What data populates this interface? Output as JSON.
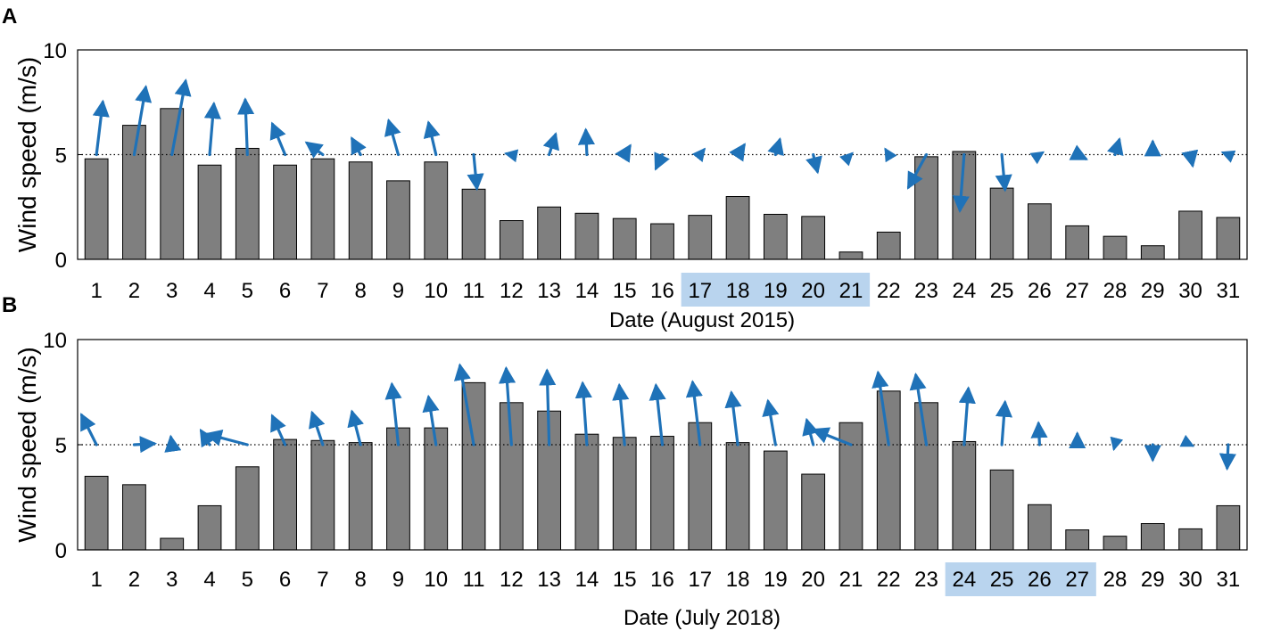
{
  "colors": {
    "bar": "#7f7f7f",
    "arrow": "#1f72b8",
    "highlight": "#b9d4ee"
  },
  "chart_data": [
    {
      "type": "bar",
      "panel": "A",
      "xlabel": "Date (August 2015)",
      "ylabel": "Wind speed (m/s)",
      "ylim": [
        0,
        10
      ],
      "yticks": [
        0,
        5,
        10
      ],
      "categories": [
        "1",
        "2",
        "3",
        "4",
        "5",
        "6",
        "7",
        "8",
        "9",
        "10",
        "11",
        "12",
        "13",
        "14",
        "15",
        "16",
        "17",
        "18",
        "19",
        "20",
        "21",
        "22",
        "23",
        "24",
        "25",
        "26",
        "27",
        "28",
        "29",
        "30",
        "31"
      ],
      "values": [
        4.8,
        6.4,
        7.2,
        4.5,
        5.3,
        4.5,
        4.8,
        4.65,
        3.75,
        4.65,
        3.35,
        1.85,
        2.5,
        2.2,
        1.95,
        1.7,
        2.1,
        3.0,
        2.15,
        2.05,
        0.35,
        1.3,
        4.9,
        5.15,
        3.4,
        2.65,
        1.6,
        1.1,
        0.65,
        2.3,
        2.0
      ],
      "reference_line": 5,
      "wind_vectors_u": [
        0.3,
        0.55,
        0.65,
        0.2,
        -0.1,
        -0.6,
        -0.75,
        -0.4,
        -0.45,
        -0.35,
        0.15,
        -0.25,
        0.3,
        -0.05,
        0.25,
        -0.3,
        0.2,
        0.3,
        0.2,
        0.2,
        0.05,
        -0.15,
        -0.85,
        -0.2,
        0.15,
        0.15,
        0.4,
        0.2,
        0.0,
        0.1,
        -0.25
      ],
      "wind_vectors_v": [
        2.5,
        3.2,
        3.5,
        2.4,
        2.6,
        1.45,
        0.55,
        0.75,
        1.6,
        1.5,
        -1.6,
        0.05,
        0.95,
        1.15,
        0.4,
        -0.65,
        0.25,
        0.45,
        0.7,
        -0.8,
        0.05,
        0.25,
        -1.55,
        -2.65,
        -1.65,
        0.1,
        -0.2,
        0.7,
        0.6,
        -0.5,
        0.1
      ],
      "highlighted_categories": [
        "17",
        "18",
        "19",
        "20",
        "21"
      ]
    },
    {
      "type": "bar",
      "panel": "B",
      "xlabel": "Date (July 2018)",
      "ylabel": "Wind speed (m/s)",
      "ylim": [
        0,
        10
      ],
      "yticks": [
        0,
        5,
        10
      ],
      "categories": [
        "1",
        "2",
        "3",
        "4",
        "5",
        "6",
        "7",
        "8",
        "9",
        "10",
        "11",
        "12",
        "13",
        "14",
        "15",
        "16",
        "17",
        "18",
        "19",
        "20",
        "21",
        "22",
        "23",
        "24",
        "25",
        "26",
        "27",
        "28",
        "29",
        "30",
        "31"
      ],
      "values": [
        3.5,
        3.1,
        0.55,
        2.1,
        3.95,
        5.25,
        5.2,
        5.1,
        5.8,
        5.8,
        7.95,
        7.0,
        6.6,
        5.5,
        5.35,
        5.4,
        6.05,
        5.1,
        4.7,
        3.6,
        6.05,
        7.55,
        7.0,
        5.15,
        3.8,
        2.15,
        0.95,
        0.65,
        1.25,
        1.0,
        2.1
      ],
      "reference_line": 5,
      "wind_vectors_u": [
        -0.7,
        0.95,
        -0.05,
        -0.4,
        -1.9,
        -0.6,
        -0.5,
        -0.4,
        -0.3,
        -0.35,
        -0.65,
        -0.25,
        -0.1,
        -0.2,
        -0.25,
        -0.3,
        -0.35,
        -0.3,
        -0.35,
        -0.3,
        -1.75,
        -0.5,
        -0.5,
        0.2,
        0.15,
        -0.05,
        0.0,
        -0.05,
        0.0,
        0.1,
        -0.05
      ],
      "wind_vectors_v": [
        1.4,
        0.05,
        0.35,
        0.65,
        0.5,
        1.35,
        1.5,
        1.55,
        2.85,
        2.25,
        3.75,
        3.6,
        3.5,
        2.9,
        2.8,
        2.8,
        2.95,
        2.45,
        2.05,
        1.15,
        0.7,
        3.4,
        3.3,
        2.65,
        2.0,
        1.0,
        0.5,
        -0.2,
        -0.7,
        -0.05,
        -1.1
      ],
      "highlighted_categories": [
        "24",
        "25",
        "26",
        "27"
      ]
    }
  ]
}
